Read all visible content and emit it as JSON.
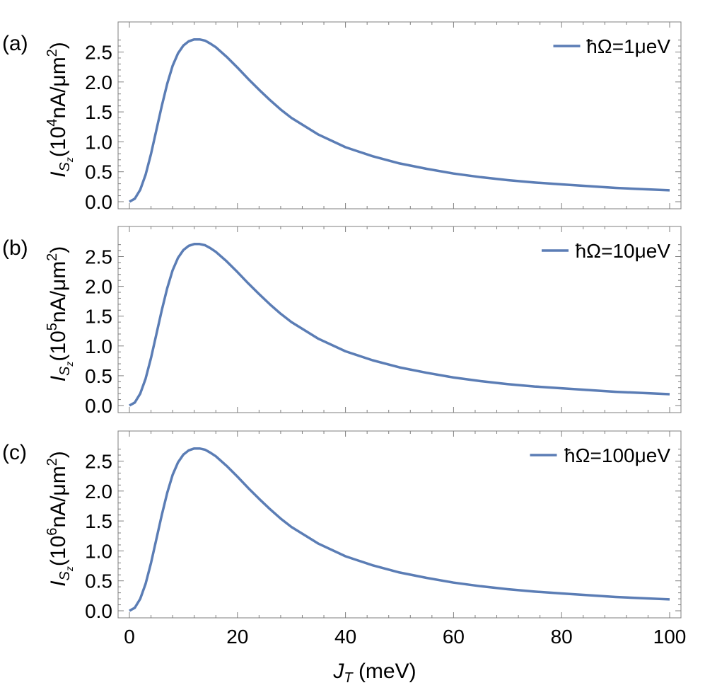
{
  "chart_data": [
    {
      "type": "line",
      "panel_label": "(a)",
      "ylabel_exp": "4",
      "legend": "ħΩ=1μeV",
      "legend_position": "top-right",
      "xlim": [
        0,
        100
      ],
      "ylim": [
        0,
        2.8
      ],
      "yticks": [
        "0.0",
        "0.5",
        "1.0",
        "1.5",
        "2.0",
        "2.5"
      ],
      "series": [
        {
          "name": "ħΩ=1μeV",
          "color": "#5b7db5",
          "x": [
            0,
            1,
            2,
            3,
            4,
            5,
            6,
            7,
            8,
            9,
            10,
            11,
            12,
            13,
            14,
            15,
            16,
            18,
            20,
            22,
            24,
            26,
            28,
            30,
            35,
            40,
            45,
            50,
            55,
            60,
            65,
            70,
            75,
            80,
            85,
            90,
            95,
            100
          ],
          "y": [
            0.0,
            0.05,
            0.2,
            0.45,
            0.8,
            1.2,
            1.6,
            1.97,
            2.27,
            2.48,
            2.61,
            2.68,
            2.71,
            2.71,
            2.69,
            2.64,
            2.58,
            2.42,
            2.24,
            2.05,
            1.87,
            1.7,
            1.54,
            1.4,
            1.12,
            0.91,
            0.76,
            0.64,
            0.55,
            0.47,
            0.41,
            0.36,
            0.32,
            0.29,
            0.26,
            0.23,
            0.21,
            0.19
          ]
        }
      ]
    },
    {
      "type": "line",
      "panel_label": "(b)",
      "ylabel_exp": "5",
      "legend": "ħΩ=10μeV",
      "legend_position": "top-right",
      "xlim": [
        0,
        100
      ],
      "ylim": [
        0,
        2.8
      ],
      "yticks": [
        "0.0",
        "0.5",
        "1.0",
        "1.5",
        "2.0",
        "2.5"
      ],
      "series": [
        {
          "name": "ħΩ=10μeV",
          "color": "#5b7db5",
          "x": [
            0,
            1,
            2,
            3,
            4,
            5,
            6,
            7,
            8,
            9,
            10,
            11,
            12,
            13,
            14,
            15,
            16,
            18,
            20,
            22,
            24,
            26,
            28,
            30,
            35,
            40,
            45,
            50,
            55,
            60,
            65,
            70,
            75,
            80,
            85,
            90,
            95,
            100
          ],
          "y": [
            0.0,
            0.05,
            0.2,
            0.45,
            0.8,
            1.2,
            1.6,
            1.97,
            2.27,
            2.48,
            2.61,
            2.68,
            2.71,
            2.71,
            2.69,
            2.64,
            2.58,
            2.42,
            2.24,
            2.05,
            1.87,
            1.7,
            1.54,
            1.4,
            1.12,
            0.91,
            0.76,
            0.64,
            0.55,
            0.47,
            0.41,
            0.36,
            0.32,
            0.29,
            0.26,
            0.23,
            0.21,
            0.19
          ]
        }
      ]
    },
    {
      "type": "line",
      "panel_label": "(c)",
      "ylabel_exp": "6",
      "legend": "ħΩ=100μeV",
      "legend_position": "top-right",
      "xlim": [
        0,
        100
      ],
      "ylim": [
        0,
        2.8
      ],
      "yticks": [
        "0.0",
        "0.5",
        "1.0",
        "1.5",
        "2.0",
        "2.5"
      ],
      "xticks": [
        "0",
        "20",
        "40",
        "60",
        "80",
        "100"
      ],
      "series": [
        {
          "name": "ħΩ=100μeV",
          "color": "#5b7db5",
          "x": [
            0,
            1,
            2,
            3,
            4,
            5,
            6,
            7,
            8,
            9,
            10,
            11,
            12,
            13,
            14,
            15,
            16,
            18,
            20,
            22,
            24,
            26,
            28,
            30,
            35,
            40,
            45,
            50,
            55,
            60,
            65,
            70,
            75,
            80,
            85,
            90,
            95,
            100
          ],
          "y": [
            0.0,
            0.05,
            0.2,
            0.45,
            0.8,
            1.2,
            1.6,
            1.97,
            2.27,
            2.48,
            2.61,
            2.68,
            2.71,
            2.71,
            2.69,
            2.64,
            2.58,
            2.42,
            2.24,
            2.05,
            1.87,
            1.7,
            1.54,
            1.4,
            1.12,
            0.91,
            0.76,
            0.64,
            0.55,
            0.47,
            0.41,
            0.36,
            0.32,
            0.29,
            0.26,
            0.23,
            0.21,
            0.19
          ]
        }
      ]
    }
  ],
  "labels": {
    "ylabel_I": "I",
    "ylabel_S": "S",
    "ylabel_z": "z",
    "ylabel_pre": "(10",
    "ylabel_post": "nA/μm",
    "ylabel_sq": "2",
    "ylabel_close": ")",
    "xlabel_J": "J",
    "xlabel_T": "T",
    "xlabel_unit": " (meV)"
  }
}
